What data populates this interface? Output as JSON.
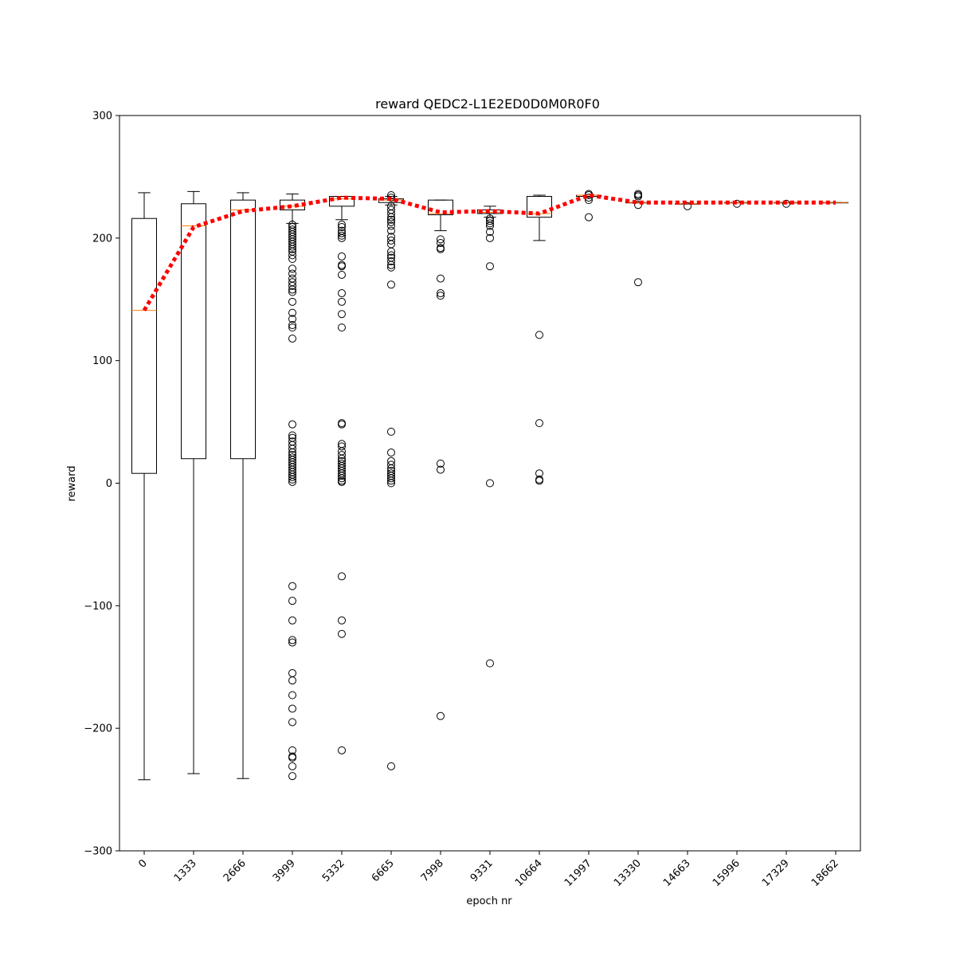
{
  "chart_data": {
    "type": "box",
    "title": "reward QEDC2-L1E2ED0D0M0R0F0",
    "xlabel": "epoch nr",
    "ylabel": "reward",
    "ylim": [
      -300,
      300
    ],
    "yticks": [
      -300,
      -200,
      -100,
      0,
      100,
      200,
      300
    ],
    "grid": false,
    "categories": [
      "0",
      "1333",
      "2666",
      "3999",
      "5332",
      "6665",
      "7998",
      "9331",
      "10664",
      "11997",
      "13330",
      "14663",
      "15996",
      "17329",
      "18662"
    ],
    "boxes": [
      {
        "whisker_low": -242,
        "q1": 8,
        "median": 141,
        "q3": 216,
        "whisker_high": 237,
        "outliers": []
      },
      {
        "whisker_low": -237,
        "q1": 20,
        "median": 210,
        "q3": 228,
        "whisker_high": 238,
        "outliers": []
      },
      {
        "whisker_low": -241,
        "q1": 20,
        "median": 223,
        "q3": 231,
        "whisker_high": 237,
        "outliers": []
      },
      {
        "whisker_low": 212,
        "q1": 223,
        "median": 226,
        "q3": 231,
        "whisker_high": 236,
        "outliers": [
          211,
          209,
          207,
          205,
          203,
          201,
          199,
          197,
          195,
          193,
          191,
          189,
          186,
          183,
          175,
          171,
          167,
          164,
          161,
          158,
          156,
          148,
          139,
          134,
          129,
          127,
          118,
          48,
          39,
          37,
          34,
          31,
          28,
          25,
          23,
          21,
          19,
          17,
          15,
          13,
          11,
          9,
          7,
          5,
          3,
          1,
          -84,
          -96,
          -112,
          -128,
          -130,
          -155,
          -161,
          -173,
          -184,
          -195,
          -218,
          -223,
          -224,
          -231,
          -239
        ]
      },
      {
        "whisker_low": 215,
        "q1": 226,
        "median": 232,
        "q3": 234,
        "whisker_high": 234,
        "outliers": [
          211,
          209,
          206,
          204,
          202,
          200,
          185,
          178,
          177,
          170,
          155,
          148,
          138,
          127,
          49,
          48,
          32,
          30,
          26,
          23,
          20,
          18,
          16,
          14,
          12,
          10,
          8,
          6,
          4,
          2,
          1,
          -76,
          -112,
          -123,
          -218
        ]
      },
      {
        "whisker_low": 227,
        "q1": 229,
        "median": 231,
        "q3": 232,
        "whisker_high": 234,
        "outliers": [
          235,
          233,
          226,
          223,
          220,
          217,
          215,
          213,
          210,
          206,
          201,
          198,
          195,
          189,
          186,
          184,
          181,
          178,
          176,
          162,
          42,
          25,
          18,
          15,
          12,
          10,
          8,
          6,
          4,
          2,
          0,
          -231
        ]
      },
      {
        "whisker_low": 206,
        "q1": 219,
        "median": 220,
        "q3": 231,
        "whisker_high": 231,
        "outliers": [
          199,
          196,
          192,
          191,
          167,
          155,
          153,
          16,
          11,
          -190
        ]
      },
      {
        "whisker_low": 217,
        "q1": 220,
        "median": 221,
        "q3": 223,
        "whisker_high": 226,
        "outliers": [
          216,
          214,
          212,
          210,
          205,
          200,
          177,
          0,
          -147
        ]
      },
      {
        "whisker_low": 198,
        "q1": 217,
        "median": 220,
        "q3": 234,
        "whisker_high": 235,
        "outliers": [
          121,
          49,
          8,
          3,
          2
        ]
      },
      {
        "whisker_low": 234,
        "q1": 234,
        "median": 235,
        "q3": 235,
        "whisker_high": 235,
        "outliers": [
          236,
          235,
          233,
          231,
          217
        ]
      },
      {
        "whisker_low": 229,
        "q1": 229,
        "median": 229,
        "q3": 229,
        "whisker_high": 229,
        "outliers": [
          236,
          235,
          234,
          227,
          164
        ]
      },
      {
        "whisker_low": 228,
        "q1": 228,
        "median": 228,
        "q3": 228,
        "whisker_high": 228,
        "outliers": [
          226
        ]
      },
      {
        "whisker_low": 229,
        "q1": 229,
        "median": 229,
        "q3": 229,
        "whisker_high": 229,
        "outliers": [
          228
        ]
      },
      {
        "whisker_low": 229,
        "q1": 229,
        "median": 229,
        "q3": 229,
        "whisker_high": 229,
        "outliers": [
          228
        ]
      },
      {
        "whisker_low": 229,
        "q1": 229,
        "median": 229,
        "q3": 229,
        "whisker_high": 229,
        "outliers": []
      }
    ],
    "mean_line": {
      "style": "dotted",
      "color": "#ff0000",
      "values": [
        141,
        209,
        222,
        226,
        233,
        232,
        221,
        222,
        220,
        235,
        229,
        229,
        229,
        229,
        229
      ]
    },
    "colors": {
      "box": "#000000",
      "median": "#ff7f0e",
      "outlier": "#000000",
      "mean": "#ff0000"
    }
  }
}
